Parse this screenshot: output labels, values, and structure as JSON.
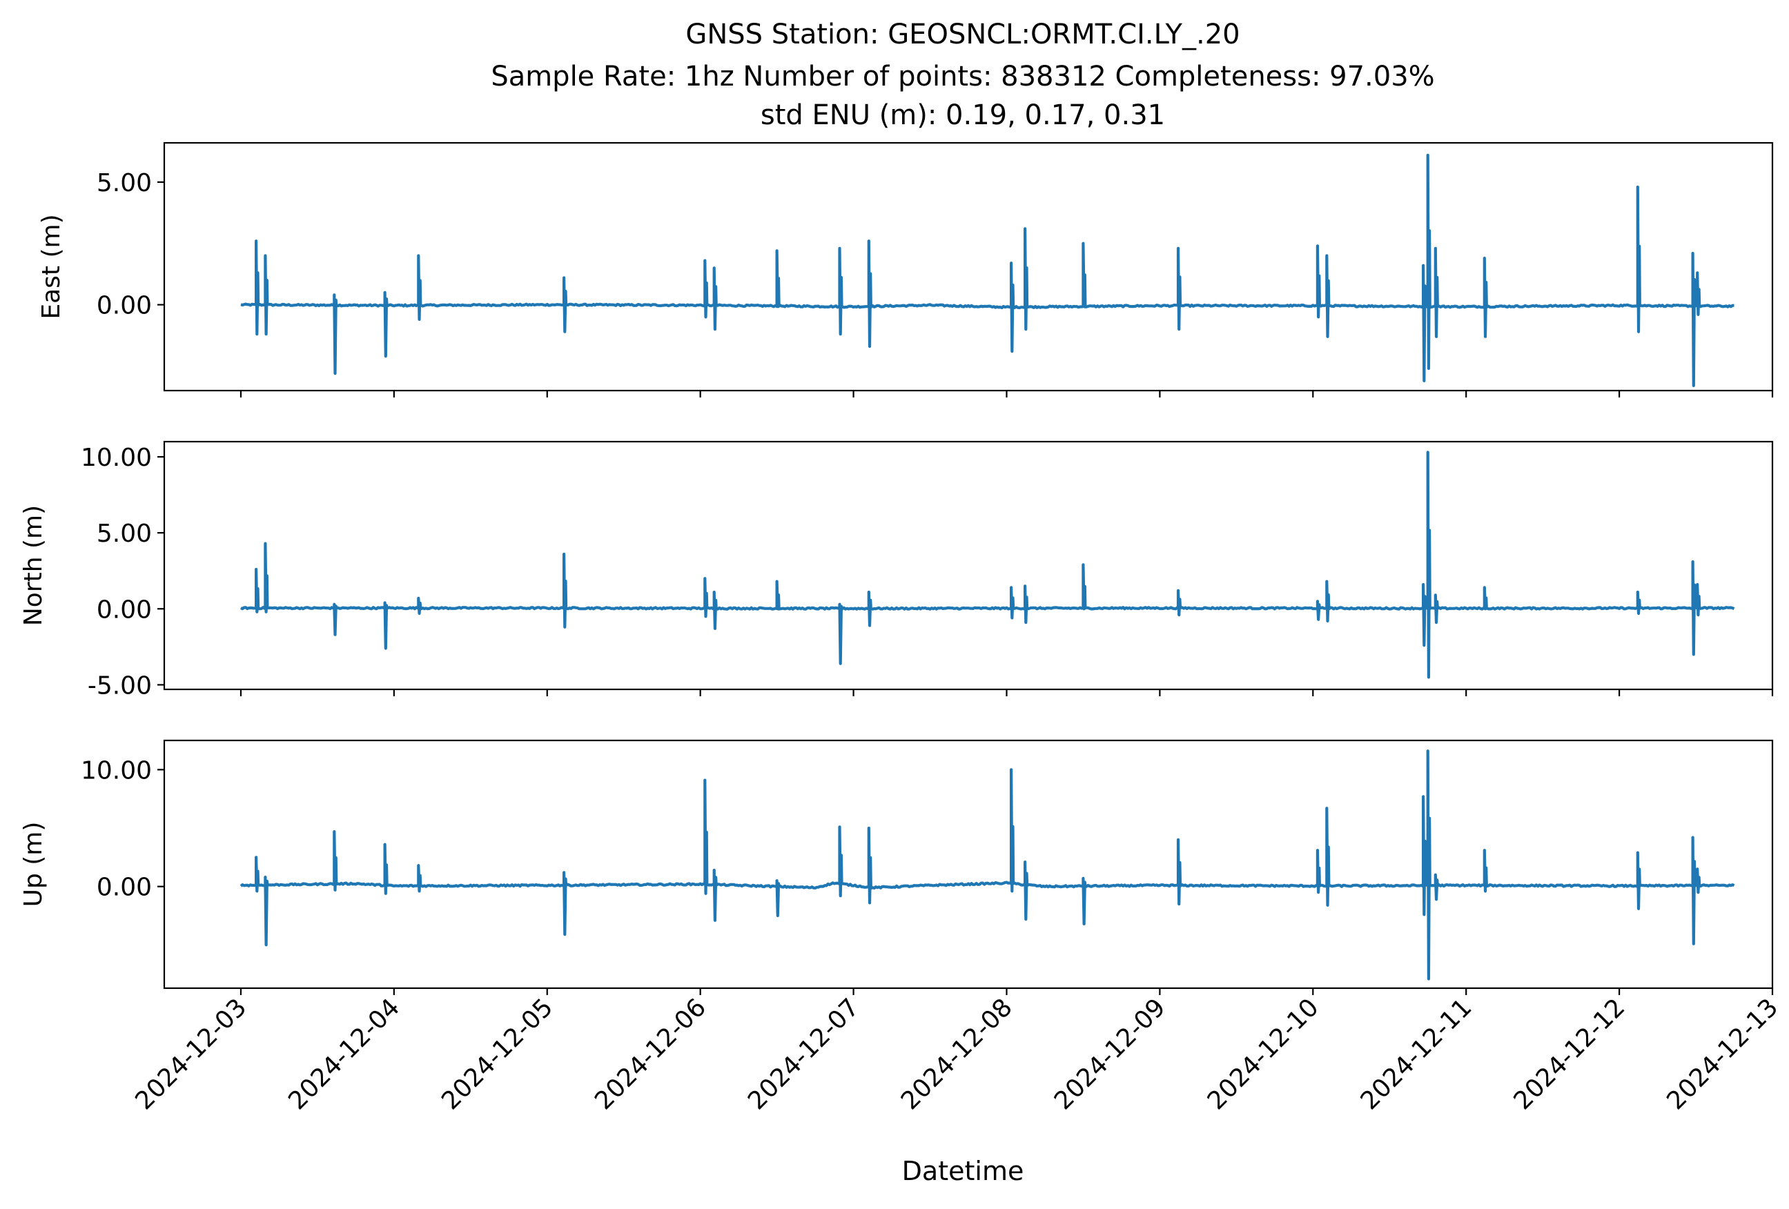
{
  "title": {
    "line1": "GNSS Station: GEOSNCL:ORMT.CI.LY_.20",
    "line2": "Sample Rate: 1hz   Number of points: 838312    Completeness:  97.03%",
    "line3": "std ENU (m):  0.19, 0.17, 0.31"
  },
  "colors": {
    "series": "#1f77b4",
    "axes": "#000000",
    "background": "#ffffff"
  },
  "chart_data": {
    "type": "line",
    "shared_x": true,
    "xlabel": "Datetime",
    "x_unit": "days",
    "xlim": [
      "2024-12-02 12:00",
      "2024-12-13 00:00"
    ],
    "x_ticks": [
      "2024-12-03",
      "2024-12-04",
      "2024-12-05",
      "2024-12-06",
      "2024-12-07",
      "2024-12-08",
      "2024-12-09",
      "2024-12-10",
      "2024-12-11",
      "2024-12-12",
      "2024-12-13"
    ],
    "grid": false,
    "data_start": "2024-12-03 00:00",
    "data_end": "2024-12-12 18:00",
    "subplots": [
      {
        "name": "east",
        "ylabel": "East (m)",
        "ylim": [
          -3.5,
          6.6
        ],
        "y_ticks": [
          0,
          5
        ],
        "y_tick_labels": [
          "0.00",
          "5.00"
        ],
        "baseline": [
          [
            "2024-12-03 00:00",
            0.0
          ],
          [
            "2024-12-04 00:00",
            -0.03
          ],
          [
            "2024-12-05 00:00",
            0.0
          ],
          [
            "2024-12-06 00:00",
            -0.02
          ],
          [
            "2024-12-07 00:00",
            -0.08
          ],
          [
            "2024-12-07 12:00",
            -0.02
          ],
          [
            "2024-12-08 00:00",
            -0.1
          ],
          [
            "2024-12-09 00:00",
            -0.04
          ],
          [
            "2024-12-10 00:00",
            -0.04
          ],
          [
            "2024-12-11 00:00",
            -0.08
          ],
          [
            "2024-12-12 00:00",
            -0.03
          ],
          [
            "2024-12-12 18:00",
            -0.06
          ]
        ],
        "spikes": [
          {
            "t": "2024-12-03 02:24",
            "max": 2.6,
            "min": -1.2
          },
          {
            "t": "2024-12-03 03:50",
            "max": 2.0,
            "min": -1.2
          },
          {
            "t": "2024-12-03 14:38",
            "max": 0.4,
            "min": -2.8
          },
          {
            "t": "2024-12-03 22:34",
            "max": 0.5,
            "min": -2.1
          },
          {
            "t": "2024-12-04 03:50",
            "max": 2.0,
            "min": -0.6
          },
          {
            "t": "2024-12-05 02:38",
            "max": 1.1,
            "min": -1.1
          },
          {
            "t": "2024-12-06 00:43",
            "max": 1.8,
            "min": -0.5
          },
          {
            "t": "2024-12-06 02:10",
            "max": 1.5,
            "min": -1.0
          },
          {
            "t": "2024-12-06 12:00",
            "max": 2.2,
            "min": 0.0
          },
          {
            "t": "2024-12-06 21:50",
            "max": 2.3,
            "min": -1.2
          },
          {
            "t": "2024-12-07 02:24",
            "max": 2.6,
            "min": -1.7
          },
          {
            "t": "2024-12-08 00:43",
            "max": 1.7,
            "min": -1.9
          },
          {
            "t": "2024-12-08 02:53",
            "max": 3.1,
            "min": -1.0
          },
          {
            "t": "2024-12-08 12:00",
            "max": 2.5,
            "min": 0.0
          },
          {
            "t": "2024-12-09 02:53",
            "max": 2.3,
            "min": -1.0
          },
          {
            "t": "2024-12-10 00:43",
            "max": 2.4,
            "min": -0.5
          },
          {
            "t": "2024-12-10 02:10",
            "max": 2.0,
            "min": -1.3
          },
          {
            "t": "2024-12-10 17:17",
            "max": 1.6,
            "min": -3.1
          },
          {
            "t": "2024-12-10 18:00",
            "max": 6.1,
            "min": -2.6
          },
          {
            "t": "2024-12-10 19:12",
            "max": 2.3,
            "min": -1.3
          },
          {
            "t": "2024-12-11 02:53",
            "max": 1.9,
            "min": -1.3
          },
          {
            "t": "2024-12-12 02:53",
            "max": 4.8,
            "min": -1.1
          },
          {
            "t": "2024-12-12 11:31",
            "max": 2.1,
            "min": -3.3
          },
          {
            "t": "2024-12-12 12:14",
            "max": 1.3,
            "min": -0.4
          }
        ]
      },
      {
        "name": "north",
        "ylabel": "North (m)",
        "ylim": [
          -5.3,
          11.0
        ],
        "y_ticks": [
          10,
          5,
          0,
          -5
        ],
        "y_tick_labels": [
          "10.00",
          "5.00",
          "0.00",
          "-5.00"
        ],
        "baseline": [
          [
            "2024-12-03 00:00",
            0.05
          ],
          [
            "2024-12-05 00:00",
            0.05
          ],
          [
            "2024-12-07 00:00",
            0.02
          ],
          [
            "2024-12-09 00:00",
            0.05
          ],
          [
            "2024-12-11 00:00",
            0.03
          ],
          [
            "2024-12-12 18:00",
            0.05
          ]
        ],
        "spikes": [
          {
            "t": "2024-12-03 02:24",
            "max": 2.6,
            "min": -0.2
          },
          {
            "t": "2024-12-03 03:50",
            "max": 4.3,
            "min": -0.2
          },
          {
            "t": "2024-12-03 14:38",
            "max": 0.3,
            "min": -1.7
          },
          {
            "t": "2024-12-03 22:34",
            "max": 0.4,
            "min": -2.6
          },
          {
            "t": "2024-12-04 03:50",
            "max": 0.7,
            "min": -0.3
          },
          {
            "t": "2024-12-05 02:38",
            "max": 3.6,
            "min": -1.2
          },
          {
            "t": "2024-12-06 00:43",
            "max": 2.0,
            "min": -0.5
          },
          {
            "t": "2024-12-06 02:10",
            "max": 1.1,
            "min": -1.3
          },
          {
            "t": "2024-12-06 12:00",
            "max": 1.8,
            "min": 0.0
          },
          {
            "t": "2024-12-06 21:50",
            "max": 0.3,
            "min": -3.6
          },
          {
            "t": "2024-12-07 02:24",
            "max": 1.1,
            "min": -1.1
          },
          {
            "t": "2024-12-08 00:43",
            "max": 1.4,
            "min": -0.6
          },
          {
            "t": "2024-12-08 02:53",
            "max": 1.5,
            "min": -0.9
          },
          {
            "t": "2024-12-08 12:00",
            "max": 2.9,
            "min": 0.0
          },
          {
            "t": "2024-12-09 02:53",
            "max": 1.2,
            "min": -0.4
          },
          {
            "t": "2024-12-10 00:43",
            "max": 0.5,
            "min": -0.7
          },
          {
            "t": "2024-12-10 02:10",
            "max": 1.8,
            "min": -0.8
          },
          {
            "t": "2024-12-10 17:17",
            "max": 1.6,
            "min": -2.4
          },
          {
            "t": "2024-12-10 18:00",
            "max": 10.3,
            "min": -4.5
          },
          {
            "t": "2024-12-10 19:12",
            "max": 0.9,
            "min": -0.9
          },
          {
            "t": "2024-12-11 02:53",
            "max": 1.4,
            "min": 0.0
          },
          {
            "t": "2024-12-12 02:53",
            "max": 1.1,
            "min": -0.3
          },
          {
            "t": "2024-12-12 11:31",
            "max": 3.1,
            "min": -3.0
          },
          {
            "t": "2024-12-12 12:14",
            "max": 1.6,
            "min": -0.4
          }
        ]
      },
      {
        "name": "up",
        "ylabel": "Up (m)",
        "ylim": [
          -8.7,
          12.5
        ],
        "y_ticks": [
          10,
          0
        ],
        "y_tick_labels": [
          "10.00",
          "0.00"
        ],
        "baseline": [
          [
            "2024-12-03 00:00",
            0.1
          ],
          [
            "2024-12-03 18:00",
            0.25
          ],
          [
            "2024-12-04 00:00",
            0.05
          ],
          [
            "2024-12-05 00:00",
            0.1
          ],
          [
            "2024-12-06 00:00",
            0.2
          ],
          [
            "2024-12-06 06:00",
            0.1
          ],
          [
            "2024-12-06 18:00",
            -0.1
          ],
          [
            "2024-12-06 21:00",
            0.3
          ],
          [
            "2024-12-07 03:00",
            -0.1
          ],
          [
            "2024-12-07 12:00",
            0.1
          ],
          [
            "2024-12-08 00:00",
            0.3
          ],
          [
            "2024-12-08 06:00",
            0.0
          ],
          [
            "2024-12-09 00:00",
            0.1
          ],
          [
            "2024-12-10 00:00",
            0.05
          ],
          [
            "2024-12-11 00:00",
            0.1
          ],
          [
            "2024-12-12 00:00",
            0.05
          ],
          [
            "2024-12-12 18:00",
            0.1
          ]
        ],
        "spikes": [
          {
            "t": "2024-12-03 02:24",
            "max": 2.5,
            "min": -0.4
          },
          {
            "t": "2024-12-03 03:50",
            "max": 0.8,
            "min": -5.0
          },
          {
            "t": "2024-12-03 14:38",
            "max": 4.7,
            "min": -0.3
          },
          {
            "t": "2024-12-03 22:34",
            "max": 3.6,
            "min": -0.6
          },
          {
            "t": "2024-12-04 03:50",
            "max": 1.8,
            "min": -0.4
          },
          {
            "t": "2024-12-05 02:38",
            "max": 1.2,
            "min": -4.1
          },
          {
            "t": "2024-12-06 00:43",
            "max": 9.1,
            "min": -0.6
          },
          {
            "t": "2024-12-06 02:10",
            "max": 1.4,
            "min": -2.9
          },
          {
            "t": "2024-12-06 12:00",
            "max": 0.5,
            "min": -2.5
          },
          {
            "t": "2024-12-06 21:50",
            "max": 5.1,
            "min": -0.8
          },
          {
            "t": "2024-12-07 02:24",
            "max": 5.0,
            "min": -1.4
          },
          {
            "t": "2024-12-08 00:43",
            "max": 10.0,
            "min": -0.4
          },
          {
            "t": "2024-12-08 02:53",
            "max": 2.1,
            "min": -2.8
          },
          {
            "t": "2024-12-08 12:00",
            "max": 0.7,
            "min": -3.2
          },
          {
            "t": "2024-12-09 02:53",
            "max": 4.0,
            "min": -1.5
          },
          {
            "t": "2024-12-10 00:43",
            "max": 3.1,
            "min": -0.5
          },
          {
            "t": "2024-12-10 02:10",
            "max": 6.7,
            "min": -1.6
          },
          {
            "t": "2024-12-10 17:17",
            "max": 7.7,
            "min": -2.4
          },
          {
            "t": "2024-12-10 18:00",
            "max": 11.6,
            "min": -7.9
          },
          {
            "t": "2024-12-10 19:12",
            "max": 1.0,
            "min": -1.1
          },
          {
            "t": "2024-12-11 02:53",
            "max": 3.1,
            "min": -0.4
          },
          {
            "t": "2024-12-12 02:53",
            "max": 2.9,
            "min": -1.9
          },
          {
            "t": "2024-12-12 11:31",
            "max": 4.2,
            "min": -4.9
          },
          {
            "t": "2024-12-12 12:14",
            "max": 1.5,
            "min": -0.5
          }
        ]
      }
    ]
  }
}
